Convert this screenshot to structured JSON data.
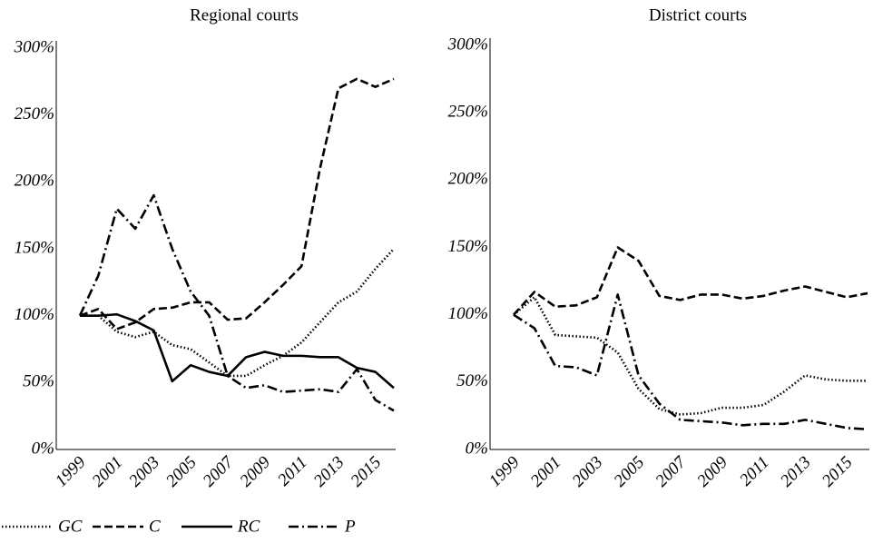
{
  "chart_data": [
    {
      "type": "line",
      "title": "Regional courts",
      "categories": [
        "1999",
        null,
        "2001",
        null,
        "2003",
        null,
        "2005",
        null,
        "2007",
        null,
        "2009",
        null,
        "2011",
        null,
        "2013",
        null,
        "2015",
        null
      ],
      "ylim": [
        0,
        300
      ],
      "yticks": [
        {
          "value": 0,
          "label": "0%"
        },
        {
          "value": 50,
          "label": "50%"
        },
        {
          "value": 100,
          "label": "100%"
        },
        {
          "value": 150,
          "label": "150%"
        },
        {
          "value": 200,
          "label": "200%"
        },
        {
          "value": 250,
          "label": "250%"
        },
        {
          "value": 300,
          "label": "300%"
        }
      ],
      "grid": false,
      "series": [
        {
          "name": "GC",
          "color": "#000000",
          "dash": "dotted",
          "values": [
            100,
            100,
            88,
            84,
            88,
            78,
            75,
            65,
            55,
            55,
            63,
            70,
            80,
            95,
            110,
            118,
            135,
            150
          ]
        },
        {
          "name": "C",
          "color": "#000000",
          "dash": "dashed",
          "values": [
            100,
            105,
            90,
            95,
            105,
            106,
            110,
            110,
            97,
            98,
            110,
            123,
            137,
            210,
            270,
            277,
            271,
            277
          ]
        },
        {
          "name": "RC",
          "color": "#000000",
          "dash": "solid",
          "values": [
            100,
            100,
            101,
            96,
            89,
            51,
            63,
            58,
            55,
            69,
            73,
            70,
            70,
            69,
            69,
            61,
            58,
            46
          ]
        },
        {
          "name": "P",
          "color": "#000000",
          "dash": "dashdot",
          "values": [
            100,
            130,
            180,
            165,
            190,
            150,
            118,
            100,
            55,
            46,
            48,
            43,
            44,
            45,
            43,
            60,
            37,
            29
          ]
        }
      ]
    },
    {
      "type": "line",
      "title": "District courts",
      "categories": [
        "1999",
        null,
        "2001",
        null,
        "2003",
        null,
        "2005",
        null,
        "2007",
        null,
        "2009",
        null,
        "2011",
        null,
        "2013",
        null,
        "2015",
        null
      ],
      "ylim": [
        0,
        300
      ],
      "yticks": [
        {
          "value": 0,
          "label": "0%"
        },
        {
          "value": 50,
          "label": "50%"
        },
        {
          "value": 100,
          "label": "100%"
        },
        {
          "value": 150,
          "label": "150%"
        },
        {
          "value": 200,
          "label": "200%"
        },
        {
          "value": 250,
          "label": "250%"
        },
        {
          "value": 300,
          "label": "300%"
        }
      ],
      "grid": false,
      "series": [
        {
          "color": "#000000",
          "dash": "dotted",
          "values": [
            100,
            113,
            85,
            84,
            83,
            72,
            45,
            30,
            26,
            27,
            31,
            31,
            33,
            43,
            55,
            52,
            51,
            51
          ]
        },
        {
          "color": "#000000",
          "dash": "dashed",
          "values": [
            100,
            117,
            106,
            107,
            113,
            150,
            140,
            114,
            111,
            115,
            115,
            112,
            114,
            118,
            121,
            117,
            113,
            116
          ]
        },
        {
          "color": "#000000",
          "dash": "dashdot",
          "values": [
            100,
            90,
            62,
            61,
            55,
            115,
            55,
            34,
            22,
            21,
            20,
            18,
            19,
            19,
            22,
            19,
            16,
            15
          ]
        }
      ]
    }
  ]
}
